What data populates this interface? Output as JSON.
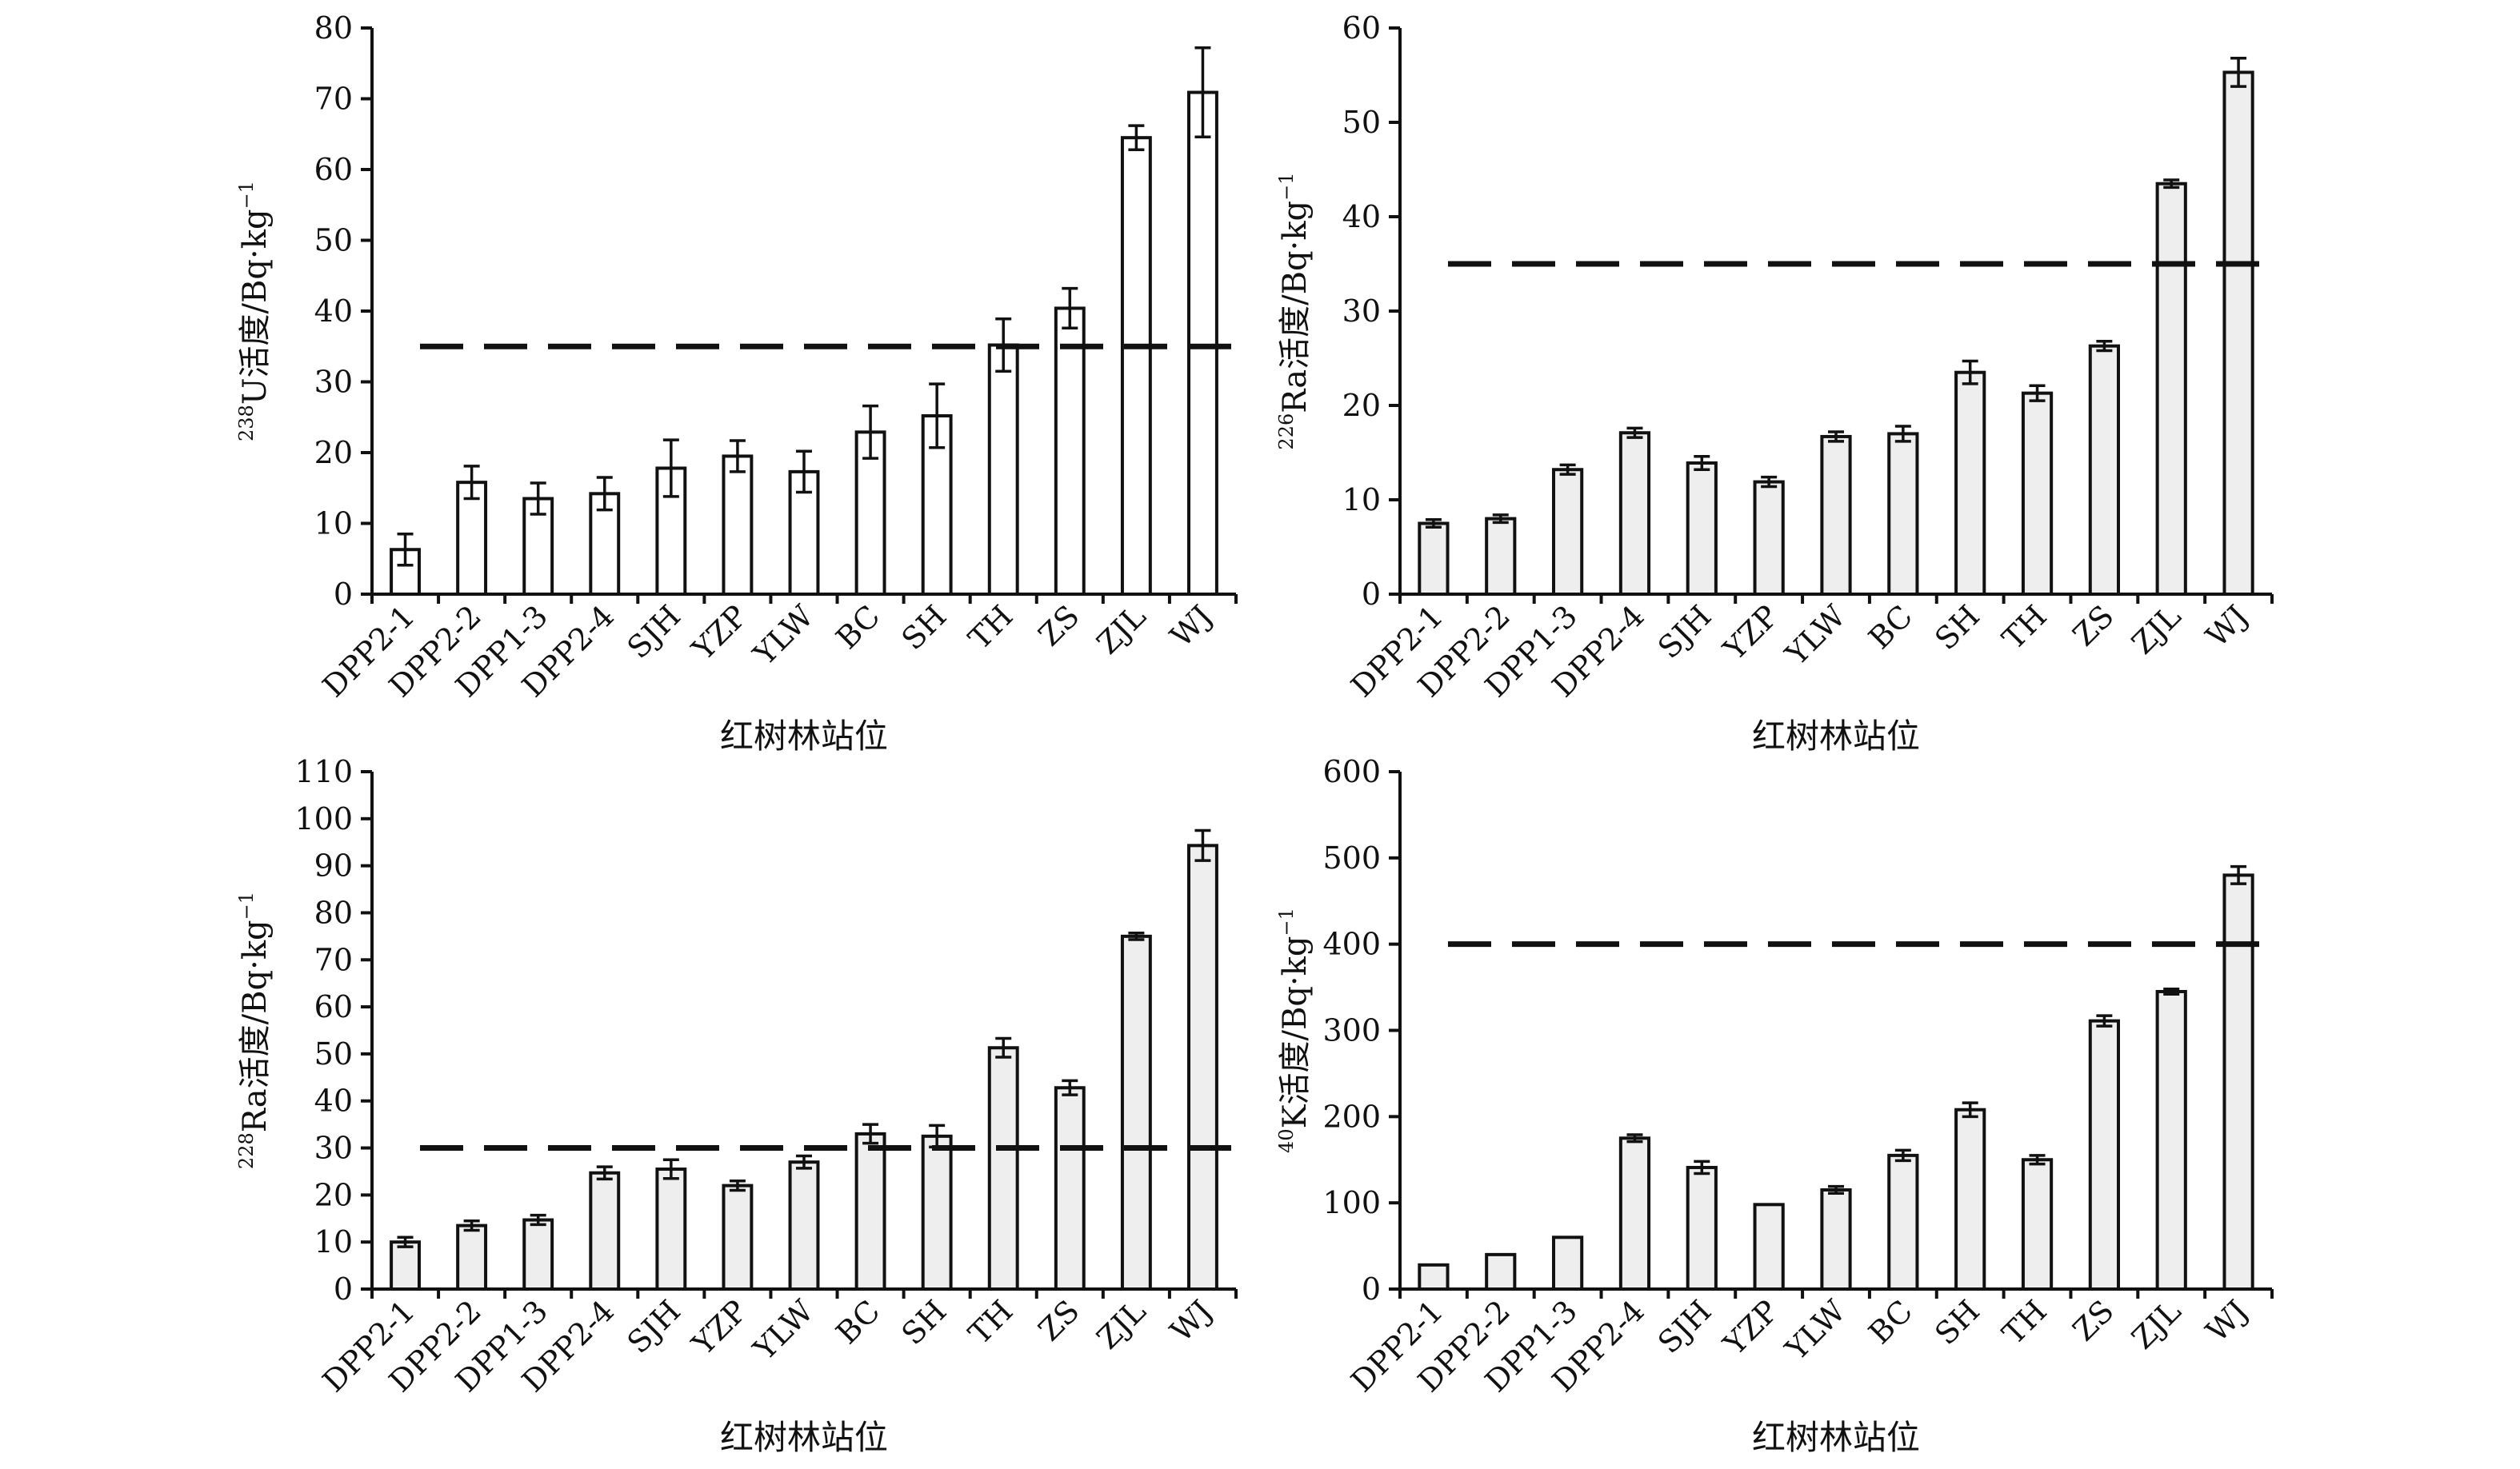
{
  "chart_data": [
    {
      "type": "bar",
      "xlabel": "红树林站位",
      "ylabel": {
        "sup": "238",
        "main": "U活度/Bq·kg",
        "exp": "−1"
      },
      "ylim": [
        0,
        80
      ],
      "yticks": [
        0,
        10,
        20,
        30,
        40,
        50,
        60,
        70,
        80
      ],
      "categories": [
        "DPP2-1",
        "DPP2-2",
        "DPP1-3",
        "DPP2-4",
        "SJH",
        "YZP",
        "YLW",
        "BC",
        "SH",
        "TH",
        "ZS",
        "ZJL",
        "WJ"
      ],
      "values": [
        6.3,
        15.8,
        13.5,
        14.2,
        17.8,
        19.5,
        17.3,
        22.9,
        25.2,
        35.2,
        40.4,
        64.5,
        70.9
      ],
      "errors": [
        2.2,
        2.3,
        2.2,
        2.3,
        4.0,
        2.2,
        2.9,
        3.7,
        4.5,
        3.7,
        2.8,
        1.7,
        6.3
      ],
      "reference_line": 35,
      "bar_fill": "#ffffff",
      "grid": false
    },
    {
      "type": "bar",
      "xlabel": "红树林站位",
      "ylabel": {
        "sup": "226",
        "main": "Ra活度/Bq·kg",
        "exp": "−1"
      },
      "ylim": [
        0,
        60
      ],
      "yticks": [
        0,
        10,
        20,
        30,
        40,
        50,
        60
      ],
      "categories": [
        "DPP2-1",
        "DPP2-2",
        "DPP1-3",
        "DPP2-4",
        "SJH",
        "YZP",
        "YLW",
        "BC",
        "SH",
        "TH",
        "ZS",
        "ZJL",
        "WJ"
      ],
      "values": [
        7.5,
        8.0,
        13.2,
        17.1,
        13.9,
        11.9,
        16.7,
        17.0,
        23.5,
        21.3,
        26.3,
        43.5,
        55.3
      ],
      "errors": [
        0.4,
        0.4,
        0.5,
        0.5,
        0.7,
        0.5,
        0.5,
        0.8,
        1.2,
        0.8,
        0.5,
        0.4,
        1.5
      ],
      "reference_line": 35,
      "bar_fill": "#eeeeee",
      "grid": false
    },
    {
      "type": "bar",
      "xlabel": "红树林站位",
      "ylabel": {
        "sup": "228",
        "main": "Ra活度/Bq·kg",
        "exp": "−1"
      },
      "ylim": [
        0,
        110
      ],
      "yticks": [
        0,
        10,
        20,
        30,
        40,
        50,
        60,
        70,
        80,
        90,
        100,
        110
      ],
      "categories": [
        "DPP2-1",
        "DPP2-2",
        "DPP1-3",
        "DPP2-4",
        "SJH",
        "YZP",
        "YLW",
        "BC",
        "SH",
        "TH",
        "ZS",
        "ZJL",
        "WJ"
      ],
      "values": [
        10.0,
        13.5,
        14.7,
        24.7,
        25.5,
        22.0,
        27.0,
        33.0,
        32.5,
        51.3,
        42.8,
        75.0,
        94.3
      ],
      "errors": [
        1.0,
        1.0,
        1.0,
        1.3,
        2.0,
        1.0,
        1.3,
        2.0,
        2.3,
        2.0,
        1.5,
        0.7,
        3.2
      ],
      "reference_line": 30,
      "bar_fill": "#eeeeee",
      "grid": false
    },
    {
      "type": "bar",
      "xlabel": "红树林站位",
      "ylabel": {
        "sup": "40",
        "main": "K活度/Bq·kg",
        "exp": "−1"
      },
      "ylim": [
        0,
        600
      ],
      "yticks": [
        0,
        100,
        200,
        300,
        400,
        500,
        600
      ],
      "categories": [
        "DPP2-1",
        "DPP2-2",
        "DPP1-3",
        "DPP2-4",
        "SJH",
        "YZP",
        "YLW",
        "BC",
        "SH",
        "TH",
        "ZS",
        "ZJL",
        "WJ"
      ],
      "values": [
        28,
        40,
        60,
        175,
        141,
        98,
        115,
        155,
        208,
        150,
        311,
        345,
        480
      ],
      "errors": [
        0,
        0,
        0,
        4,
        7,
        0,
        4,
        6,
        8,
        5,
        6,
        3,
        10
      ],
      "reference_line": 400,
      "bar_fill": "#eeeeee",
      "grid": false
    }
  ]
}
